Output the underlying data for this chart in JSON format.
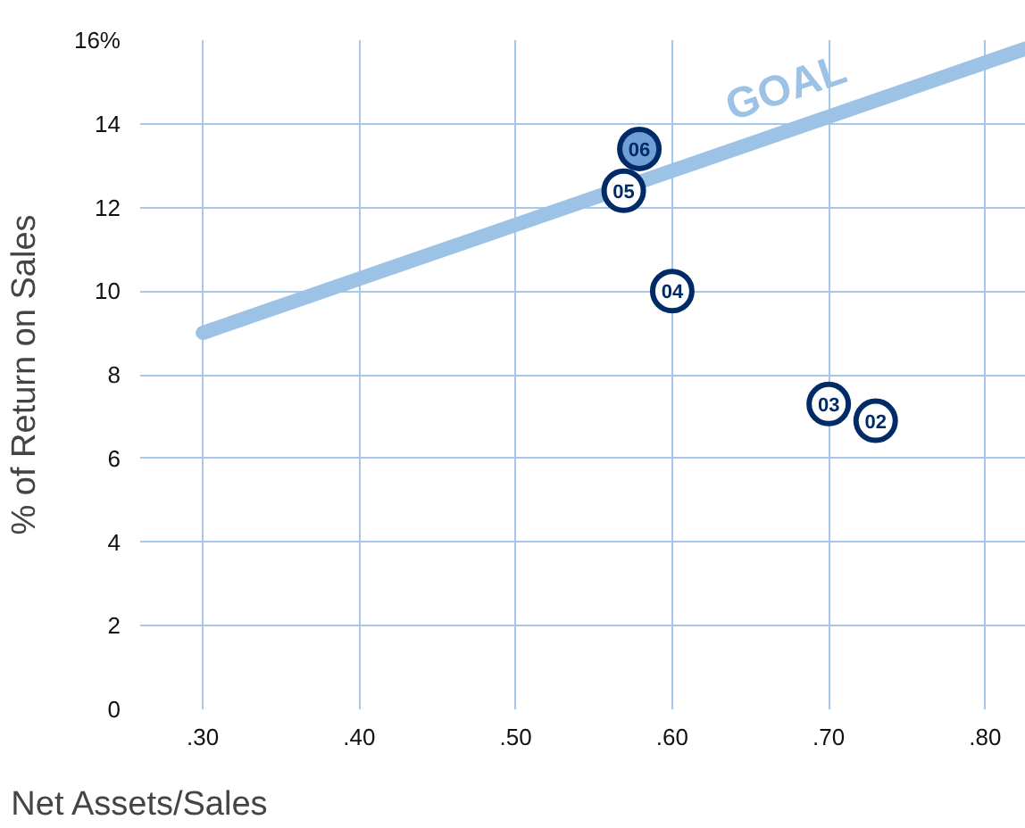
{
  "chart_data": {
    "type": "scatter",
    "xlabel": "Net Assets/Sales",
    "ylabel": "% of Return on Sales",
    "xlim": [
      0.26,
      0.826
    ],
    "ylim": [
      0,
      16
    ],
    "xticks": [
      {
        "value": 0.3,
        "label": ".30"
      },
      {
        "value": 0.4,
        "label": ".40"
      },
      {
        "value": 0.5,
        "label": ".50"
      },
      {
        "value": 0.6,
        "label": ".60"
      },
      {
        "value": 0.7,
        "label": ".70"
      },
      {
        "value": 0.8,
        "label": ".80"
      }
    ],
    "yticks": [
      0,
      2,
      4,
      6,
      8,
      10,
      12,
      14,
      {
        "value": 16,
        "label": "16%"
      }
    ],
    "grid": true,
    "marker": "circle",
    "series": [
      {
        "name": "GOAL",
        "type": "line",
        "marker": "none",
        "color": "#9cc2e6",
        "x": [
          0.3,
          0.826
        ],
        "values": [
          9.0,
          15.8
        ]
      },
      {
        "name": "02",
        "color": "#002b66",
        "x": [
          0.73
        ],
        "values": [
          6.9
        ]
      },
      {
        "name": "03",
        "color": "#002b66",
        "x": [
          0.7
        ],
        "values": [
          7.3
        ]
      },
      {
        "name": "04",
        "color": "#002b66",
        "x": [
          0.6
        ],
        "values": [
          10.0
        ]
      },
      {
        "name": "05",
        "color": "#002b66",
        "x": [
          0.569
        ],
        "values": [
          12.4
        ]
      },
      {
        "name": "06",
        "color": "#6f9fd4",
        "x": [
          0.579
        ],
        "values": [
          13.4
        ]
      }
    ]
  }
}
